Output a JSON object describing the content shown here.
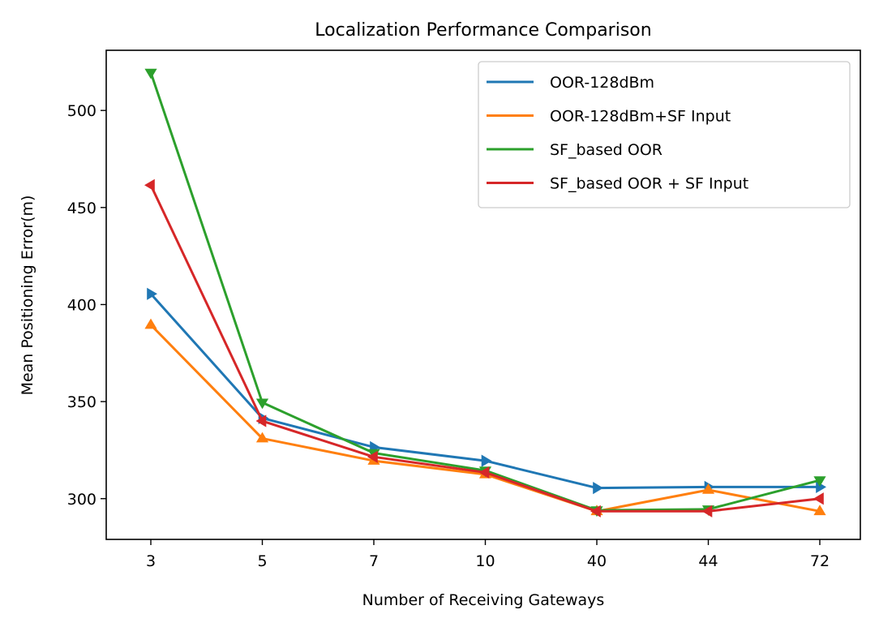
{
  "chart_data": {
    "type": "line",
    "title": "Localization Performance Comparison",
    "xlabel": "Number of Receiving Gateways",
    "ylabel": "Mean Positioning Error(m)",
    "categories": [
      "3",
      "5",
      "7",
      "10",
      "40",
      "44",
      "72"
    ],
    "ylim": [
      279,
      531
    ],
    "yticks": [
      300,
      350,
      400,
      450,
      500
    ],
    "grid": false,
    "legend": "top-right",
    "series": [
      {
        "name": "OOR-128dBm",
        "color": "#1f77b4",
        "marker": "triangle-right",
        "values": [
          405.5,
          341.5,
          326.5,
          319.5,
          305.5,
          306.0,
          306.0
        ]
      },
      {
        "name": "OOR-128dBm+SF Input",
        "color": "#ff7f0e",
        "marker": "triangle-up",
        "values": [
          389.5,
          331.0,
          319.5,
          312.5,
          293.5,
          304.5,
          293.5
        ]
      },
      {
        "name": "SF_based OOR",
        "color": "#2ca02c",
        "marker": "triangle-down",
        "values": [
          519.5,
          349.5,
          323.5,
          314.5,
          294.0,
          294.5,
          309.5
        ]
      },
      {
        "name": "SF_based OOR + SF Input",
        "color": "#d62728",
        "marker": "triangle-left",
        "values": [
          461.5,
          340.0,
          321.5,
          313.5,
          293.5,
          293.5,
          300.0
        ]
      }
    ]
  }
}
